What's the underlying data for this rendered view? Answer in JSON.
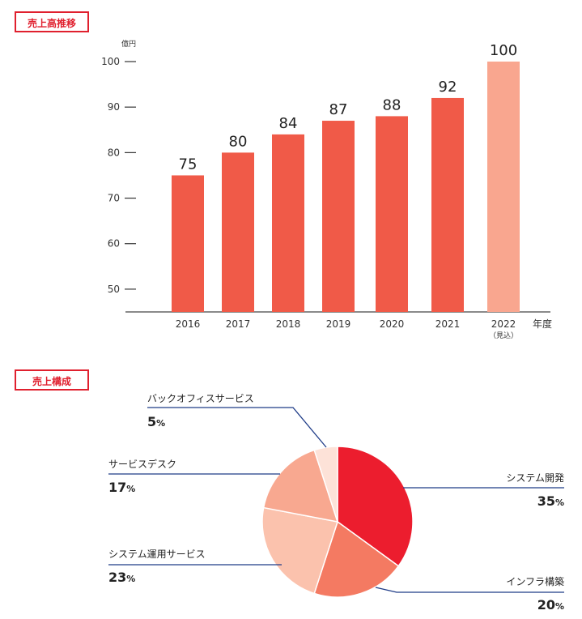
{
  "sections": {
    "sales_title": "売上高推移",
    "composition_title": "売上構成"
  },
  "chart_data": [
    {
      "type": "bar",
      "title": "売上高推移",
      "ylabel": "億円",
      "xlabel": "年度",
      "ylim": [
        45,
        100
      ],
      "yticks": [
        50,
        60,
        70,
        80,
        90,
        100
      ],
      "categories": [
        "2016",
        "2017",
        "2018",
        "2019",
        "2020",
        "2021",
        "2022"
      ],
      "category_sublabels": [
        "",
        "",
        "",
        "",
        "",
        "",
        "（見込）"
      ],
      "values": [
        75,
        80,
        84,
        87,
        88,
        92,
        100
      ],
      "colors": [
        "#f05a48",
        "#f05a48",
        "#f05a48",
        "#f05a48",
        "#f05a48",
        "#f05a48",
        "#f9a68f"
      ],
      "grid": false
    },
    {
      "type": "pie",
      "title": "売上構成",
      "slices": [
        {
          "name": "システム開発",
          "value": 35,
          "color": "#ec1d2e"
        },
        {
          "name": "インフラ構築",
          "value": 20,
          "color": "#f47a62"
        },
        {
          "name": "システム運用サービス",
          "value": 23,
          "color": "#fbc2ad"
        },
        {
          "name": "サービスデスク",
          "value": 17,
          "color": "#f8a890"
        },
        {
          "name": "バックオフィスサービス",
          "value": 5,
          "color": "#fde2d8"
        }
      ],
      "percent_symbol": "%",
      "leader_color": "#1f3c88"
    }
  ]
}
